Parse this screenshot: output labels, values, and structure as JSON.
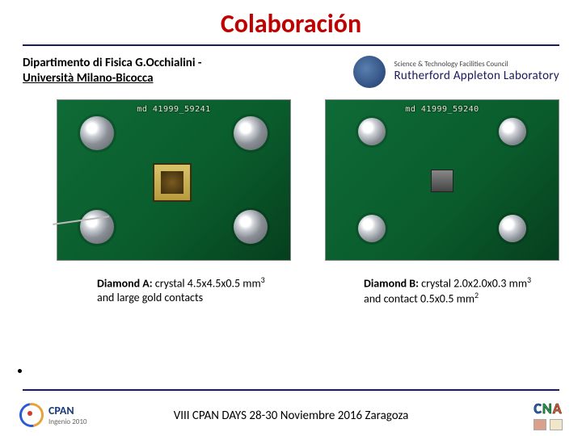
{
  "title": "Colaboración",
  "affiliation": {
    "dept": "Dipartimento di Fisica G.Occhialini -",
    "uni": " Università Milano-Bicocca"
  },
  "partner": {
    "council": "Science & Technology Facilities Council",
    "lab": "Rutherford Appleton Laboratory"
  },
  "photos": {
    "a_label": "md 41999_59241",
    "b_label": "md 41999_59240"
  },
  "captions": {
    "a": {
      "lead": "Diamond A:",
      "rest": " crystal 4.5x4.5x0.5 mm",
      "sup": "3",
      "tail": " and large gold contacts"
    },
    "b": {
      "lead": "Diamond B:",
      "rest": " crystal 2.0x2.0x0.3 mm",
      "sup": "3",
      "tail": " and contact 0.5x0.5 mm",
      "sup2": "2"
    }
  },
  "footer": {
    "logo_left_main": "CPAN",
    "logo_left_sub": "Ingenio 2010",
    "text": "VIII CPAN DAYS 28-30 Noviembre 2016 Zaragoza",
    "logo_right": "CNA"
  },
  "colors": {
    "title": "#c00000",
    "rule": "#1a1a5c",
    "pcb": "#0a5b2c"
  }
}
